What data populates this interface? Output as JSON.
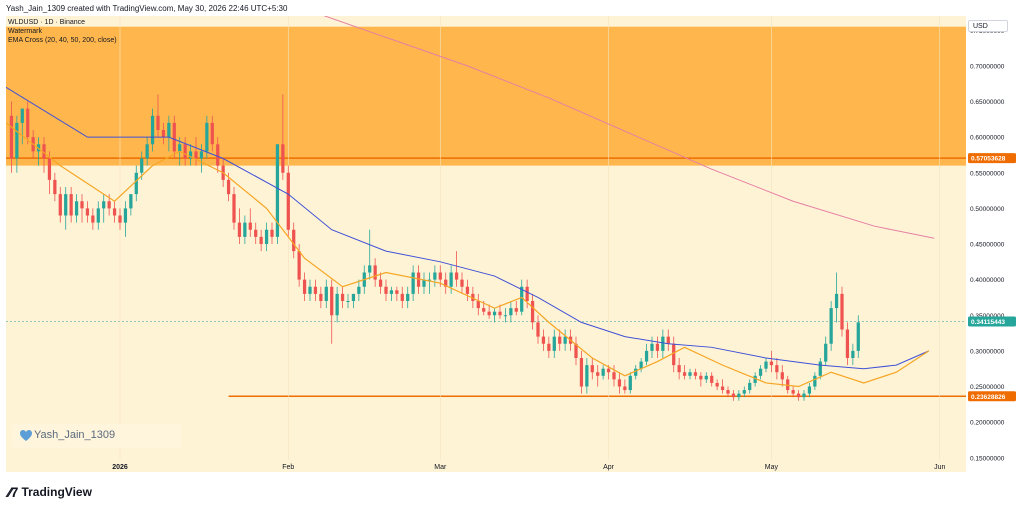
{
  "header": {
    "caption": "Yash_Jain_1309 created with TradingView.com, May 30, 2026 22:46 UTC+5:30"
  },
  "legend": {
    "symbol_line": "WLDUSD · 1D · Binance",
    "watermark_label": "Watermark",
    "indicator_line": "EMA Cross (20, 40, 50, 200, close)"
  },
  "axis": {
    "currency_badge": "USD"
  },
  "watermark": {
    "user": "Yash_Jain_1309",
    "icon": "heart-icon",
    "icon_color": "#5d9ed6"
  },
  "brand": {
    "name": "TradingView",
    "icon": "tradingview-logo-icon"
  },
  "colors": {
    "background": "#fff3d6",
    "resistance_zone": "#ffb74d",
    "up_candle": "#26a69a",
    "down_candle": "#ef5350",
    "ema20": "#f5a623",
    "ema50": "#3f51d6",
    "ema200": "#e57fa3",
    "support_line": "#ef6c00",
    "price_badge": "#26a69a",
    "resistance_badge": "#ef6c00",
    "support_badge": "#ef6c00"
  },
  "chart_data": {
    "type": "candlestick",
    "ylim": [
      0.13,
      0.77
    ],
    "y_ticks": [
      "0.75000000",
      "0.70000000",
      "0.65000000",
      "0.60000000",
      "0.55000000",
      "0.50000000",
      "0.45000000",
      "0.40000000",
      "0.35000000",
      "0.30000000",
      "0.25000000",
      "0.20000000",
      "0.15000000"
    ],
    "y_tick_values": [
      0.75,
      0.7,
      0.65,
      0.6,
      0.55,
      0.5,
      0.45,
      0.4,
      0.35,
      0.3,
      0.25,
      0.2,
      0.15
    ],
    "x_range_days": [
      0,
      175
    ],
    "x_ticks": [
      {
        "label": "2026",
        "day": 21,
        "bold": true
      },
      {
        "label": "Feb",
        "day": 52,
        "bold": false
      },
      {
        "label": "Mar",
        "day": 80,
        "bold": false
      },
      {
        "label": "Apr",
        "day": 111,
        "bold": false
      },
      {
        "label": "May",
        "day": 141,
        "bold": false
      },
      {
        "label": "Jun",
        "day": 172,
        "bold": false
      }
    ],
    "resistance_zone": [
      0.56,
      0.755
    ],
    "resistance_level": 0.57053628,
    "resistance_label": "0.57053628",
    "support_level": 0.23628826,
    "support_label": "0.23628826",
    "support_start_day": 41,
    "last_price": 0.34115443,
    "last_price_label": "0.34115443",
    "candles": [
      [
        0.63,
        0.65,
        0.55,
        0.57
      ],
      [
        0.57,
        0.63,
        0.55,
        0.62
      ],
      [
        0.62,
        0.64,
        0.59,
        0.64
      ],
      [
        0.64,
        0.65,
        0.59,
        0.6
      ],
      [
        0.6,
        0.61,
        0.57,
        0.58
      ],
      [
        0.58,
        0.6,
        0.56,
        0.59
      ],
      [
        0.59,
        0.6,
        0.55,
        0.57
      ],
      [
        0.57,
        0.58,
        0.52,
        0.54
      ],
      [
        0.54,
        0.55,
        0.51,
        0.52
      ],
      [
        0.52,
        0.53,
        0.48,
        0.49
      ],
      [
        0.49,
        0.53,
        0.47,
        0.52
      ],
      [
        0.52,
        0.53,
        0.48,
        0.49
      ],
      [
        0.49,
        0.52,
        0.48,
        0.51
      ],
      [
        0.51,
        0.52,
        0.48,
        0.5
      ],
      [
        0.5,
        0.51,
        0.48,
        0.49
      ],
      [
        0.49,
        0.5,
        0.47,
        0.48
      ],
      [
        0.48,
        0.51,
        0.47,
        0.5
      ],
      [
        0.5,
        0.52,
        0.48,
        0.51
      ],
      [
        0.51,
        0.52,
        0.49,
        0.5
      ],
      [
        0.5,
        0.51,
        0.48,
        0.49
      ],
      [
        0.49,
        0.5,
        0.47,
        0.48
      ],
      [
        0.48,
        0.51,
        0.46,
        0.5
      ],
      [
        0.5,
        0.52,
        0.49,
        0.52
      ],
      [
        0.52,
        0.56,
        0.51,
        0.55
      ],
      [
        0.55,
        0.58,
        0.54,
        0.57
      ],
      [
        0.57,
        0.6,
        0.56,
        0.59
      ],
      [
        0.59,
        0.64,
        0.58,
        0.63
      ],
      [
        0.63,
        0.66,
        0.6,
        0.61
      ],
      [
        0.61,
        0.62,
        0.59,
        0.6
      ],
      [
        0.6,
        0.63,
        0.58,
        0.62
      ],
      [
        0.62,
        0.63,
        0.57,
        0.58
      ],
      [
        0.58,
        0.6,
        0.56,
        0.59
      ],
      [
        0.59,
        0.6,
        0.56,
        0.57
      ],
      [
        0.57,
        0.59,
        0.56,
        0.58
      ],
      [
        0.58,
        0.6,
        0.56,
        0.57
      ],
      [
        0.57,
        0.59,
        0.55,
        0.58
      ],
      [
        0.58,
        0.63,
        0.57,
        0.62
      ],
      [
        0.62,
        0.63,
        0.58,
        0.59
      ],
      [
        0.59,
        0.6,
        0.55,
        0.56
      ],
      [
        0.56,
        0.57,
        0.53,
        0.54
      ],
      [
        0.54,
        0.55,
        0.51,
        0.52
      ],
      [
        0.52,
        0.53,
        0.47,
        0.48
      ],
      [
        0.48,
        0.5,
        0.45,
        0.46
      ],
      [
        0.46,
        0.49,
        0.45,
        0.48
      ],
      [
        0.48,
        0.5,
        0.46,
        0.47
      ],
      [
        0.47,
        0.48,
        0.45,
        0.46
      ],
      [
        0.46,
        0.47,
        0.44,
        0.45
      ],
      [
        0.45,
        0.48,
        0.44,
        0.47
      ],
      [
        0.47,
        0.48,
        0.45,
        0.46
      ],
      [
        0.46,
        0.59,
        0.45,
        0.59
      ],
      [
        0.59,
        0.66,
        0.54,
        0.55
      ],
      [
        0.55,
        0.56,
        0.46,
        0.47
      ],
      [
        0.47,
        0.48,
        0.43,
        0.44
      ],
      [
        0.44,
        0.45,
        0.39,
        0.4
      ],
      [
        0.4,
        0.41,
        0.37,
        0.38
      ],
      [
        0.38,
        0.4,
        0.37,
        0.39
      ],
      [
        0.39,
        0.4,
        0.37,
        0.38
      ],
      [
        0.38,
        0.39,
        0.36,
        0.37
      ],
      [
        0.37,
        0.4,
        0.36,
        0.39
      ],
      [
        0.39,
        0.4,
        0.31,
        0.35
      ],
      [
        0.35,
        0.39,
        0.34,
        0.38
      ],
      [
        0.38,
        0.39,
        0.36,
        0.37
      ],
      [
        0.37,
        0.38,
        0.36,
        0.37
      ],
      [
        0.37,
        0.38,
        0.36,
        0.38
      ],
      [
        0.38,
        0.4,
        0.37,
        0.39
      ],
      [
        0.39,
        0.42,
        0.38,
        0.41
      ],
      [
        0.41,
        0.47,
        0.4,
        0.42
      ],
      [
        0.42,
        0.43,
        0.39,
        0.4
      ],
      [
        0.4,
        0.41,
        0.38,
        0.39
      ],
      [
        0.39,
        0.4,
        0.37,
        0.38
      ],
      [
        0.38,
        0.39,
        0.37,
        0.385
      ],
      [
        0.385,
        0.39,
        0.37,
        0.38
      ],
      [
        0.38,
        0.39,
        0.36,
        0.37
      ],
      [
        0.37,
        0.39,
        0.36,
        0.38
      ],
      [
        0.38,
        0.42,
        0.37,
        0.41
      ],
      [
        0.41,
        0.42,
        0.38,
        0.39
      ],
      [
        0.39,
        0.41,
        0.38,
        0.4
      ],
      [
        0.4,
        0.41,
        0.38,
        0.4
      ],
      [
        0.4,
        0.42,
        0.39,
        0.41
      ],
      [
        0.41,
        0.42,
        0.39,
        0.4
      ],
      [
        0.4,
        0.41,
        0.38,
        0.39
      ],
      [
        0.39,
        0.42,
        0.38,
        0.41
      ],
      [
        0.41,
        0.44,
        0.39,
        0.4
      ],
      [
        0.4,
        0.41,
        0.38,
        0.39
      ],
      [
        0.39,
        0.4,
        0.37,
        0.38
      ],
      [
        0.38,
        0.39,
        0.36,
        0.37
      ],
      [
        0.37,
        0.38,
        0.35,
        0.36
      ],
      [
        0.36,
        0.37,
        0.35,
        0.355
      ],
      [
        0.355,
        0.365,
        0.345,
        0.35
      ],
      [
        0.35,
        0.36,
        0.34,
        0.355
      ],
      [
        0.355,
        0.365,
        0.345,
        0.35
      ],
      [
        0.35,
        0.36,
        0.34,
        0.35
      ],
      [
        0.35,
        0.37,
        0.34,
        0.36
      ],
      [
        0.36,
        0.37,
        0.35,
        0.355
      ],
      [
        0.355,
        0.4,
        0.35,
        0.39
      ],
      [
        0.39,
        0.4,
        0.36,
        0.37
      ],
      [
        0.37,
        0.38,
        0.33,
        0.34
      ],
      [
        0.34,
        0.35,
        0.31,
        0.32
      ],
      [
        0.32,
        0.33,
        0.3,
        0.31
      ],
      [
        0.31,
        0.32,
        0.29,
        0.3
      ],
      [
        0.3,
        0.33,
        0.29,
        0.32
      ],
      [
        0.32,
        0.33,
        0.3,
        0.31
      ],
      [
        0.31,
        0.33,
        0.3,
        0.32
      ],
      [
        0.32,
        0.33,
        0.3,
        0.31
      ],
      [
        0.31,
        0.32,
        0.28,
        0.29
      ],
      [
        0.29,
        0.3,
        0.24,
        0.25
      ],
      [
        0.25,
        0.29,
        0.24,
        0.28
      ],
      [
        0.28,
        0.29,
        0.26,
        0.27
      ],
      [
        0.27,
        0.28,
        0.25,
        0.265
      ],
      [
        0.265,
        0.28,
        0.26,
        0.275
      ],
      [
        0.275,
        0.28,
        0.26,
        0.27
      ],
      [
        0.27,
        0.28,
        0.25,
        0.26
      ],
      [
        0.26,
        0.27,
        0.24,
        0.25
      ],
      [
        0.25,
        0.26,
        0.24,
        0.245
      ],
      [
        0.245,
        0.27,
        0.24,
        0.265
      ],
      [
        0.265,
        0.28,
        0.26,
        0.275
      ],
      [
        0.275,
        0.29,
        0.27,
        0.285
      ],
      [
        0.285,
        0.31,
        0.28,
        0.3
      ],
      [
        0.3,
        0.32,
        0.29,
        0.31
      ],
      [
        0.31,
        0.32,
        0.29,
        0.3
      ],
      [
        0.3,
        0.33,
        0.29,
        0.32
      ],
      [
        0.32,
        0.33,
        0.3,
        0.31
      ],
      [
        0.31,
        0.32,
        0.27,
        0.28
      ],
      [
        0.28,
        0.29,
        0.26,
        0.27
      ],
      [
        0.27,
        0.28,
        0.26,
        0.265
      ],
      [
        0.265,
        0.275,
        0.26,
        0.27
      ],
      [
        0.27,
        0.275,
        0.26,
        0.265
      ],
      [
        0.265,
        0.27,
        0.25,
        0.26
      ],
      [
        0.26,
        0.27,
        0.255,
        0.265
      ],
      [
        0.265,
        0.27,
        0.25,
        0.255
      ],
      [
        0.255,
        0.26,
        0.245,
        0.25
      ],
      [
        0.25,
        0.26,
        0.24,
        0.245
      ],
      [
        0.245,
        0.25,
        0.235,
        0.24
      ],
      [
        0.24,
        0.245,
        0.23,
        0.235
      ],
      [
        0.235,
        0.245,
        0.23,
        0.24
      ],
      [
        0.24,
        0.25,
        0.235,
        0.245
      ],
      [
        0.245,
        0.26,
        0.24,
        0.255
      ],
      [
        0.255,
        0.27,
        0.25,
        0.265
      ],
      [
        0.265,
        0.28,
        0.26,
        0.275
      ],
      [
        0.275,
        0.29,
        0.27,
        0.285
      ],
      [
        0.285,
        0.3,
        0.27,
        0.28
      ],
      [
        0.28,
        0.29,
        0.26,
        0.27
      ],
      [
        0.27,
        0.28,
        0.25,
        0.26
      ],
      [
        0.26,
        0.265,
        0.24,
        0.245
      ],
      [
        0.245,
        0.25,
        0.235,
        0.24
      ],
      [
        0.24,
        0.245,
        0.23,
        0.235
      ],
      [
        0.235,
        0.245,
        0.23,
        0.24
      ],
      [
        0.24,
        0.255,
        0.235,
        0.25
      ],
      [
        0.25,
        0.27,
        0.245,
        0.265
      ],
      [
        0.265,
        0.29,
        0.26,
        0.285
      ],
      [
        0.285,
        0.32,
        0.28,
        0.31
      ],
      [
        0.31,
        0.37,
        0.3,
        0.36
      ],
      [
        0.36,
        0.41,
        0.34,
        0.38
      ],
      [
        0.38,
        0.39,
        0.32,
        0.33
      ],
      [
        0.33,
        0.34,
        0.28,
        0.29
      ],
      [
        0.29,
        0.31,
        0.28,
        0.3
      ],
      [
        0.3,
        0.35,
        0.29,
        0.34
      ]
    ],
    "ema20": [
      [
        0,
        0.62
      ],
      [
        10,
        0.56
      ],
      [
        20,
        0.51
      ],
      [
        27,
        0.56
      ],
      [
        32,
        0.58
      ],
      [
        40,
        0.55
      ],
      [
        48,
        0.5
      ],
      [
        55,
        0.43
      ],
      [
        62,
        0.39
      ],
      [
        70,
        0.41
      ],
      [
        80,
        0.395
      ],
      [
        90,
        0.36
      ],
      [
        95,
        0.375
      ],
      [
        100,
        0.34
      ],
      [
        108,
        0.29
      ],
      [
        114,
        0.265
      ],
      [
        120,
        0.285
      ],
      [
        125,
        0.305
      ],
      [
        132,
        0.28
      ],
      [
        140,
        0.255
      ],
      [
        146,
        0.25
      ],
      [
        152,
        0.27
      ],
      [
        158,
        0.255
      ],
      [
        164,
        0.27
      ],
      [
        170,
        0.3
      ]
    ],
    "ema50": [
      [
        0,
        0.67
      ],
      [
        15,
        0.6
      ],
      [
        30,
        0.6
      ],
      [
        40,
        0.57
      ],
      [
        52,
        0.52
      ],
      [
        60,
        0.47
      ],
      [
        70,
        0.44
      ],
      [
        80,
        0.425
      ],
      [
        90,
        0.405
      ],
      [
        98,
        0.375
      ],
      [
        106,
        0.34
      ],
      [
        114,
        0.32
      ],
      [
        122,
        0.31
      ],
      [
        130,
        0.305
      ],
      [
        140,
        0.29
      ],
      [
        150,
        0.28
      ],
      [
        158,
        0.275
      ],
      [
        164,
        0.28
      ],
      [
        170,
        0.3
      ]
    ],
    "ema200": [
      [
        55,
        0.78
      ],
      [
        70,
        0.74
      ],
      [
        85,
        0.7
      ],
      [
        100,
        0.655
      ],
      [
        115,
        0.605
      ],
      [
        130,
        0.555
      ],
      [
        145,
        0.51
      ],
      [
        160,
        0.475
      ],
      [
        171,
        0.458
      ]
    ]
  }
}
